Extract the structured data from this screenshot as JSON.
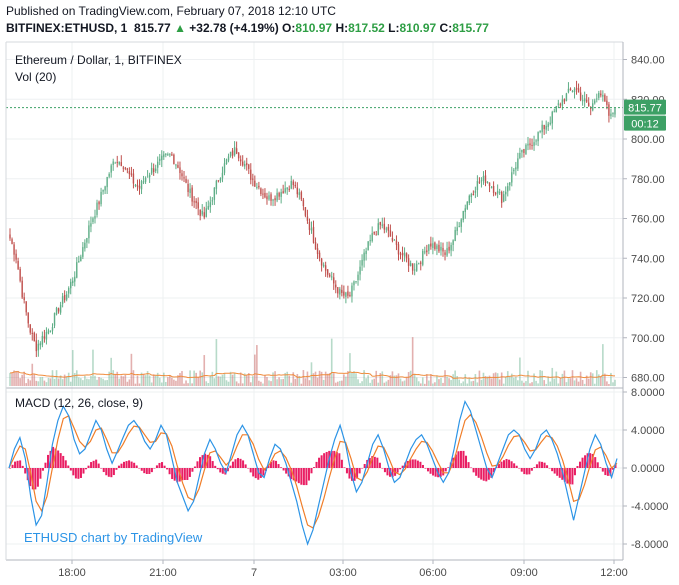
{
  "header": {
    "published": "Published on TradingView.com, February 07, 2018 12:10 UTC",
    "symbol": "BITFINEX:ETHUSD, 1",
    "last": "815.77",
    "change_arrow": "▲",
    "change": "+32.78 (+4.19%)",
    "o_label": "O:",
    "o_value": "810.97",
    "h_label": "H:",
    "h_value": "817.52",
    "l_label": "L:",
    "l_value": "810.97",
    "c_label": "C:",
    "c_value": "815.77"
  },
  "main_panel": {
    "title": "Ethereum / Dollar, 1, BITFINEX",
    "volume_label": "Vol (20)",
    "price_tag": "815.77",
    "countdown_tag": "00:12"
  },
  "macd_panel": {
    "title": "MACD (12, 26, close, 9)",
    "watermark": "ETHUSD chart by TradingView"
  },
  "colors": {
    "up": "#5fae87",
    "down": "#c0504d",
    "price_tag": "#3da065",
    "macd_line": "#2c94e6",
    "signal_line": "#f07d28",
    "histogram": "#e91e63",
    "volume_ma": "#f08c3c",
    "grid": "#eef0f2",
    "watermark": "#2c94e6"
  },
  "chart_data": [
    {
      "type": "candlestick",
      "title": "Ethereum / Dollar, 1, BITFINEX",
      "y_ticks": [
        "840.00",
        "820.00",
        "800.00",
        "780.00",
        "760.00",
        "740.00",
        "720.00",
        "700.00",
        "680.00"
      ],
      "ylim": [
        675,
        844
      ],
      "x_ticks": [
        "18:00",
        "21:00",
        "7",
        "03:00",
        "06:00",
        "09:00",
        "12:00"
      ],
      "last_price": 815.77,
      "grid": true,
      "close_path": [
        [
          0,
          750
        ],
        [
          4,
          740
        ],
        [
          8,
          720
        ],
        [
          12,
          705
        ],
        [
          16,
          695
        ],
        [
          20,
          700
        ],
        [
          25,
          705
        ],
        [
          30,
          715
        ],
        [
          35,
          722
        ],
        [
          40,
          732
        ],
        [
          45,
          745
        ],
        [
          50,
          758
        ],
        [
          55,
          768
        ],
        [
          60,
          780
        ],
        [
          65,
          790
        ],
        [
          70,
          788
        ],
        [
          75,
          780
        ],
        [
          80,
          775
        ],
        [
          85,
          782
        ],
        [
          90,
          786
        ],
        [
          95,
          790
        ],
        [
          100,
          792
        ],
        [
          105,
          785
        ],
        [
          110,
          775
        ],
        [
          115,
          768
        ],
        [
          120,
          760
        ],
        [
          125,
          770
        ],
        [
          130,
          782
        ],
        [
          135,
          790
        ],
        [
          140,
          795
        ],
        [
          145,
          788
        ],
        [
          150,
          780
        ],
        [
          155,
          775
        ],
        [
          160,
          770
        ],
        [
          165,
          772
        ],
        [
          170,
          775
        ],
        [
          175,
          778
        ],
        [
          180,
          770
        ],
        [
          185,
          758
        ],
        [
          190,
          745
        ],
        [
          195,
          735
        ],
        [
          200,
          728
        ],
        [
          205,
          722
        ],
        [
          210,
          720
        ],
        [
          215,
          730
        ],
        [
          220,
          742
        ],
        [
          225,
          752
        ],
        [
          230,
          757
        ],
        [
          235,
          752
        ],
        [
          240,
          745
        ],
        [
          245,
          740
        ],
        [
          250,
          735
        ],
        [
          255,
          740
        ],
        [
          260,
          748
        ],
        [
          265,
          745
        ],
        [
          270,
          742
        ],
        [
          275,
          750
        ],
        [
          280,
          762
        ],
        [
          285,
          772
        ],
        [
          290,
          778
        ],
        [
          295,
          780
        ],
        [
          300,
          775
        ],
        [
          305,
          770
        ],
        [
          310,
          780
        ],
        [
          315,
          790
        ],
        [
          320,
          795
        ],
        [
          325,
          800
        ],
        [
          330,
          805
        ],
        [
          335,
          810
        ],
        [
          340,
          817
        ],
        [
          345,
          822
        ],
        [
          350,
          826
        ],
        [
          355,
          820
        ],
        [
          360,
          815
        ],
        [
          365,
          825
        ],
        [
          370,
          815
        ],
        [
          372,
          810
        ],
        [
          375,
          815.77
        ]
      ],
      "volume_ma_level": 18
    },
    {
      "type": "line",
      "title": "MACD (12, 26, close, 9)",
      "y_ticks": [
        "8.0000",
        "4.0000",
        "0.0000",
        "-4.0000",
        "-8.0000"
      ],
      "ylim": [
        -8.4,
        8.4
      ],
      "series": [
        {
          "name": "MACD",
          "values": [
            0.0,
            2.0,
            3.2,
            1.0,
            -3.0,
            -6.0,
            -5.0,
            -1.5,
            2.5,
            5.0,
            6.5,
            5.5,
            3.0,
            1.5,
            2.0,
            3.5,
            5.0,
            4.0,
            2.0,
            0.5,
            1.8,
            3.2,
            4.5,
            5.0,
            4.2,
            2.8,
            2.0,
            3.0,
            4.5,
            3.5,
            1.0,
            -1.5,
            -3.0,
            -4.5,
            -3.5,
            -1.0,
            1.5,
            3.0,
            2.0,
            0.5,
            -0.5,
            1.5,
            3.5,
            4.5,
            3.5,
            1.5,
            -0.5,
            -1.0,
            1.0,
            2.5,
            2.0,
            0.5,
            -1.5,
            -3.5,
            -6.0,
            -8.0,
            -6.5,
            -4.0,
            -1.5,
            1.0,
            3.0,
            4.5,
            2.5,
            -0.5,
            -2.5,
            -1.5,
            0.5,
            2.5,
            3.5,
            2.0,
            0.0,
            -1.5,
            -1.0,
            0.5,
            2.0,
            3.0,
            3.5,
            2.5,
            1.0,
            -0.5,
            -1.5,
            -0.5,
            2.0,
            5.0,
            7.0,
            6.0,
            4.0,
            2.0,
            0.0,
            -1.0,
            0.5,
            2.0,
            3.5,
            4.0,
            3.5,
            2.0,
            1.0,
            2.0,
            3.5,
            4.0,
            3.0,
            1.5,
            -0.5,
            -3.0,
            -5.5,
            -3.0,
            -0.5,
            2.0,
            3.5,
            2.5,
            0.5,
            -1.0,
            1.0
          ]
        },
        {
          "name": "Signal",
          "values": [
            0.0,
            1.2,
            2.3,
            2.0,
            -0.5,
            -3.5,
            -4.5,
            -3.0,
            0.0,
            3.0,
            5.2,
            5.5,
            4.2,
            2.8,
            2.2,
            2.8,
            4.0,
            4.2,
            3.0,
            1.6,
            1.6,
            2.5,
            3.6,
            4.4,
            4.3,
            3.5,
            2.7,
            2.8,
            3.7,
            3.6,
            2.3,
            0.2,
            -1.6,
            -3.1,
            -3.4,
            -2.2,
            -0.2,
            1.6,
            1.8,
            1.1,
            0.3,
            0.9,
            2.3,
            3.5,
            3.5,
            2.5,
            0.9,
            -0.2,
            0.4,
            1.5,
            1.8,
            1.1,
            -0.2,
            -1.9,
            -4.0,
            -6.0,
            -6.3,
            -5.1,
            -3.2,
            -1.0,
            1.0,
            2.8,
            2.7,
            1.0,
            -1.0,
            -1.3,
            -0.4,
            1.1,
            2.3,
            2.2,
            1.0,
            -0.4,
            -0.7,
            -0.1,
            1.0,
            2.0,
            2.8,
            2.7,
            1.8,
            0.6,
            -0.5,
            -0.5,
            0.8,
            3.0,
            5.0,
            5.6,
            4.8,
            3.3,
            1.6,
            0.2,
            0.3,
            1.2,
            2.4,
            3.3,
            3.4,
            2.7,
            1.8,
            1.9,
            2.7,
            3.4,
            3.2,
            2.3,
            0.8,
            -1.2,
            -3.5,
            -3.3,
            -1.8,
            0.2,
            1.9,
            2.2,
            1.3,
            0.0,
            0.5
          ]
        }
      ],
      "histogram": "MACD minus Signal",
      "grid": true
    }
  ]
}
